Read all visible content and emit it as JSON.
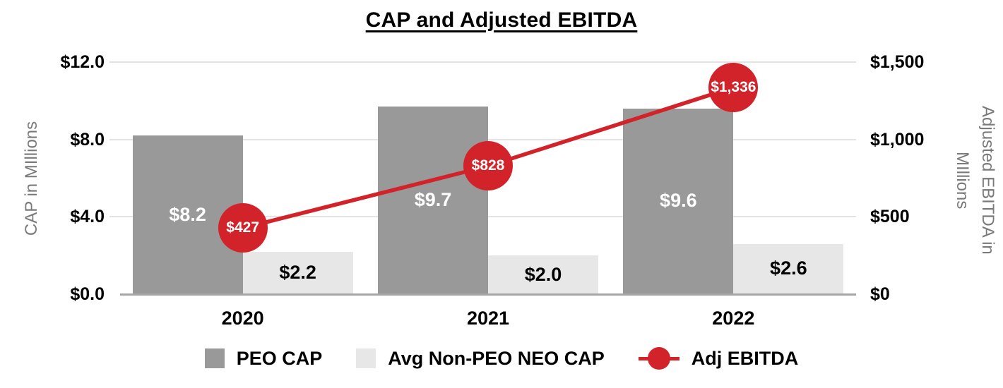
{
  "chart_data": {
    "type": "bar",
    "subtype": "combo-bar-line-dual-axis",
    "title": "CAP and Adjusted EBITDA",
    "categories": [
      "2020",
      "2021",
      "2022"
    ],
    "series": [
      {
        "name": "PEO CAP",
        "render": "bar",
        "axis": "left",
        "values": [
          8.2,
          9.7,
          9.6
        ],
        "labels": [
          "$8.2",
          "$9.7",
          "$9.6"
        ],
        "color": "#999999",
        "label_color": "#ffffff"
      },
      {
        "name": "Avg Non-PEO NEO CAP",
        "render": "bar",
        "axis": "left",
        "values": [
          2.2,
          2.0,
          2.6
        ],
        "labels": [
          "$2.2",
          "$2.0",
          "$2.6"
        ],
        "color": "#e7e7e7",
        "label_color": "#000000"
      },
      {
        "name": "Adj EBITDA",
        "render": "line",
        "axis": "right",
        "values": [
          427,
          828,
          1336
        ],
        "labels": [
          "$427",
          "$828",
          "$1,336"
        ],
        "color": "#d2232a",
        "label_color": "#ffffff"
      }
    ],
    "left_axis": {
      "title": "CAP in MIllions",
      "min": 0,
      "max": 12,
      "ticks": [
        {
          "value": 0,
          "label": "$0.0"
        },
        {
          "value": 4,
          "label": "$4.0"
        },
        {
          "value": 8,
          "label": "$8.0"
        },
        {
          "value": 12,
          "label": "$12.0"
        }
      ]
    },
    "right_axis": {
      "title": "Adjusted EBITDA in MIllions",
      "title_lines": [
        "Adjusted EBITDA in",
        "MIllions"
      ],
      "min": 0,
      "max": 1500,
      "ticks": [
        {
          "value": 0,
          "label": "$0"
        },
        {
          "value": 500,
          "label": "$500"
        },
        {
          "value": 1000,
          "label": "$1,000"
        },
        {
          "value": 1500,
          "label": "$1,500"
        }
      ]
    },
    "legend": [
      {
        "label": "PEO CAP",
        "swatch": "square",
        "color": "#999999"
      },
      {
        "label": "Avg Non-PEO NEO CAP",
        "swatch": "square",
        "color": "#e7e7e7"
      },
      {
        "label": "Adj EBITDA",
        "swatch": "line-dot",
        "color": "#d2232a"
      }
    ],
    "grid": true,
    "colors": {
      "grid": "#e3e3e3",
      "axis_line": "#a6a6a6",
      "axis_title_text": "#7a7a7a"
    }
  }
}
